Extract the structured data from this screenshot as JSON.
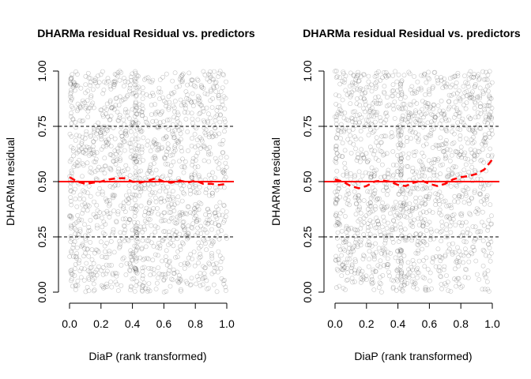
{
  "chart_data": [
    {
      "type": "scatter",
      "title": "DHARMa residual Residual vs. predictors",
      "xlabel": "DiaP (rank transformed)",
      "ylabel": "DHARMa residual",
      "xlim": [
        0,
        1
      ],
      "ylim": [
        0,
        1
      ],
      "xticks": [
        "0.0",
        "0.2",
        "0.4",
        "0.6",
        "0.8",
        "1.0"
      ],
      "yticks": [
        "0.00",
        "0.25",
        "0.50",
        "0.75",
        "1.00"
      ],
      "grid": false,
      "reference_lines": [
        {
          "y": 0.25,
          "style": "dashed",
          "color": "#000000"
        },
        {
          "y": 0.5,
          "style": "solid",
          "color": "#ff0000"
        },
        {
          "y": 0.75,
          "style": "dashed",
          "color": "#000000"
        }
      ],
      "point_count_approx": 1500,
      "smooth_line": {
        "color": "#ff0000",
        "style": "dashed",
        "x": [
          0.0,
          0.05,
          0.1,
          0.15,
          0.2,
          0.25,
          0.3,
          0.35,
          0.4,
          0.45,
          0.5,
          0.55,
          0.6,
          0.65,
          0.7,
          0.75,
          0.8,
          0.85,
          0.9,
          0.95,
          1.0
        ],
        "y": [
          0.52,
          0.5,
          0.49,
          0.495,
          0.5,
          0.51,
          0.515,
          0.515,
          0.5,
          0.495,
          0.505,
          0.515,
          0.5,
          0.495,
          0.505,
          0.495,
          0.505,
          0.49,
          0.49,
          0.485,
          0.49
        ]
      }
    },
    {
      "type": "scatter",
      "title": "DHARMa residual Residual vs. predictors",
      "xlabel": "DiaP (rank transformed)",
      "ylabel": "DHARMa residual",
      "xlim": [
        0,
        1
      ],
      "ylim": [
        0,
        1
      ],
      "xticks": [
        "0.0",
        "0.2",
        "0.4",
        "0.6",
        "0.8",
        "1.0"
      ],
      "yticks": [
        "0.00",
        "0.25",
        "0.50",
        "0.75",
        "1.00"
      ],
      "grid": false,
      "reference_lines": [
        {
          "y": 0.25,
          "style": "dashed",
          "color": "#000000"
        },
        {
          "y": 0.5,
          "style": "solid",
          "color": "#ff0000"
        },
        {
          "y": 0.75,
          "style": "dashed",
          "color": "#000000"
        }
      ],
      "point_count_approx": 1500,
      "smooth_line": {
        "color": "#ff0000",
        "style": "dashed",
        "x": [
          0.0,
          0.05,
          0.1,
          0.15,
          0.2,
          0.25,
          0.3,
          0.35,
          0.4,
          0.45,
          0.5,
          0.55,
          0.6,
          0.65,
          0.7,
          0.75,
          0.8,
          0.85,
          0.9,
          0.95,
          1.0
        ],
        "y": [
          0.51,
          0.5,
          0.48,
          0.47,
          0.48,
          0.5,
          0.505,
          0.5,
          0.485,
          0.48,
          0.495,
          0.505,
          0.49,
          0.48,
          0.49,
          0.51,
          0.52,
          0.525,
          0.535,
          0.555,
          0.6
        ]
      }
    }
  ]
}
